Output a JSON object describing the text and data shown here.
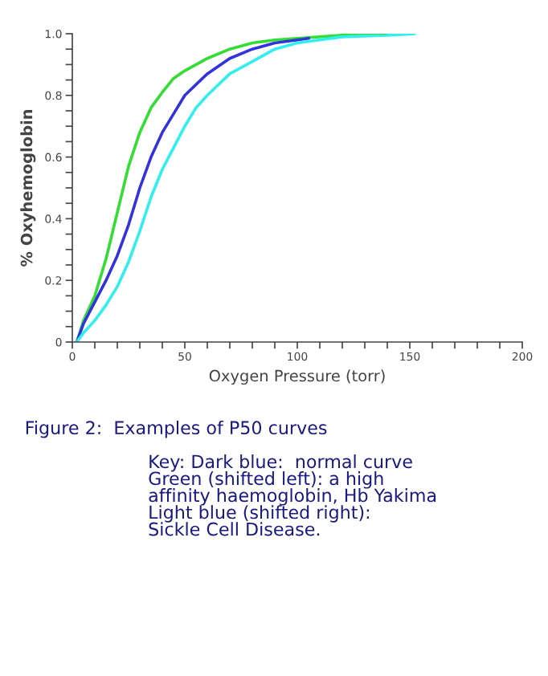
{
  "chart_data": {
    "type": "line",
    "xlabel": "Oxygen Pressure (torr)",
    "ylabel": "% Oxyhemoglobin",
    "xlim": [
      0,
      200
    ],
    "ylim": [
      0,
      1.0
    ],
    "xticks": [
      0,
      {
        "value": 10,
        "label": null
      },
      {
        "value": 20,
        "label": null
      },
      {
        "value": 30,
        "label": null
      },
      {
        "value": 40,
        "label": null
      },
      50,
      {
        "value": 60,
        "label": null
      },
      {
        "value": 70,
        "label": null
      },
      {
        "value": 80,
        "label": null
      },
      {
        "value": 90,
        "label": null
      },
      100,
      {
        "value": 110,
        "label": null
      },
      {
        "value": 120,
        "label": null
      },
      {
        "value": 130,
        "label": null
      },
      {
        "value": 140,
        "label": null
      },
      150,
      {
        "value": 160,
        "label": null
      },
      {
        "value": 170,
        "label": null
      },
      {
        "value": 180,
        "label": null
      },
      {
        "value": 190,
        "label": null
      },
      200
    ],
    "yticks": [
      0,
      {
        "value": 0.05,
        "label": null
      },
      {
        "value": 0.1,
        "label": null
      },
      {
        "value": 0.15,
        "label": null
      },
      0.2,
      {
        "value": 0.25,
        "label": null
      },
      {
        "value": 0.3,
        "label": null
      },
      {
        "value": 0.35,
        "label": null
      },
      0.4,
      {
        "value": 0.45,
        "label": null
      },
      {
        "value": 0.5,
        "label": null
      },
      {
        "value": 0.55,
        "label": null
      },
      0.6,
      {
        "value": 0.65,
        "label": null
      },
      {
        "value": 0.7,
        "label": null
      },
      {
        "value": 0.75,
        "label": null
      },
      0.8,
      {
        "value": 0.85,
        "label": null
      },
      {
        "value": 0.9,
        "label": null
      },
      {
        "value": 0.95,
        "label": null
      },
      {
        "value": 1.0,
        "label": "1.0"
      }
    ],
    "grid": false,
    "legend": false,
    "marker": "none",
    "line_style": "solid",
    "series": [
      {
        "color": "#33dd33",
        "x": [
          2,
          5,
          10,
          15,
          20,
          25,
          30,
          35,
          40,
          45,
          50,
          60,
          70,
          80,
          90,
          100,
          120,
          140
        ],
        "values": [
          0,
          0.07,
          0.15,
          0.27,
          0.42,
          0.57,
          0.68,
          0.76,
          0.81,
          0.855,
          0.88,
          0.92,
          0.95,
          0.97,
          0.98,
          0.985,
          0.995,
          1.0
        ]
      },
      {
        "color": "#3333dd",
        "x": [
          2,
          5,
          10,
          15,
          20,
          25,
          30,
          35,
          40,
          45,
          50,
          60,
          70,
          80,
          90,
          100,
          105
        ],
        "values": [
          0,
          0.06,
          0.13,
          0.2,
          0.28,
          0.38,
          0.5,
          0.6,
          0.68,
          0.74,
          0.8,
          0.87,
          0.92,
          0.95,
          0.97,
          0.98,
          0.985
        ]
      },
      {
        "color": "#33eeee",
        "x": [
          2,
          5,
          10,
          15,
          20,
          25,
          30,
          35,
          40,
          45,
          50,
          55,
          60,
          70,
          80,
          90,
          100,
          120,
          140,
          152
        ],
        "values": [
          0,
          0.03,
          0.07,
          0.12,
          0.18,
          0.26,
          0.36,
          0.47,
          0.56,
          0.63,
          0.7,
          0.76,
          0.8,
          0.87,
          0.91,
          0.95,
          0.97,
          0.99,
          0.995,
          1.0
        ]
      }
    ],
    "annotations": [
      "Figure 2:  Examples of P50 curves",
      "Key: Dark blue:  normal curve",
      "Green (shifted left): a high",
      "affinity haemoglobin, Hb Yakima",
      "Light blue (shifted right):",
      "Sickle Cell Disease."
    ]
  }
}
